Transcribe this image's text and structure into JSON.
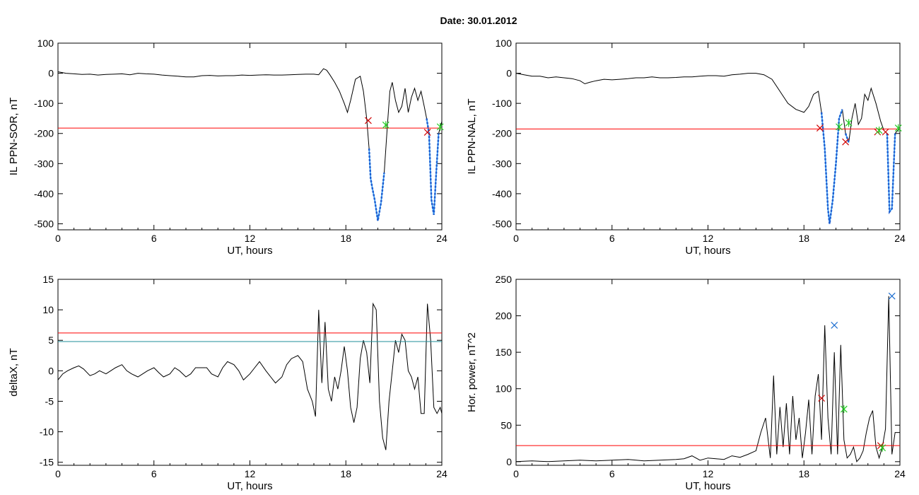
{
  "title": "Date:  30.01.2012",
  "colors": {
    "trace": "#000000",
    "threshold_red": "#ff0000",
    "threshold_teal": "#1f8f9a",
    "highlight_blue": "#1f5fd0",
    "highlight_light": "#2ea0ff",
    "marker_red": "#d00000",
    "marker_green": "#22cc22",
    "marker_blue": "#1f6fd0"
  },
  "chart_data": [
    {
      "id": "sor",
      "type": "line",
      "ylabel": "IL PPN-SOR, nT",
      "xlabel": "UT, hours",
      "xlim": [
        0,
        24
      ],
      "ylim": [
        -520,
        100
      ],
      "xticks": [
        "0",
        "6",
        "12",
        "18",
        "24"
      ],
      "yticks": [
        "100",
        "0",
        "-100",
        "-200",
        "-300",
        "-400",
        "-500"
      ],
      "grid": false,
      "series": [
        {
          "x": [
            0,
            0.5,
            1,
            1.5,
            2,
            2.5,
            3,
            3.5,
            4,
            4.5,
            5,
            5.5,
            6,
            6.5,
            7,
            7.5,
            8,
            8.5,
            9,
            9.5,
            10,
            10.5,
            11,
            11.5,
            12,
            12.5,
            13,
            13.5,
            14,
            14.5,
            15,
            15.5,
            16,
            16.3,
            16.6,
            16.8,
            17,
            17.3,
            17.6,
            17.9,
            18.1,
            18.3,
            18.6,
            18.9,
            19.1,
            19.3,
            19.45,
            19.55,
            19.65,
            19.8,
            20,
            20.2,
            20.4,
            20.6,
            20.75,
            20.9,
            21.1,
            21.3,
            21.5,
            21.7,
            21.9,
            22.1,
            22.3,
            22.5,
            22.7,
            22.9,
            23.05,
            23.2,
            23.35,
            23.5,
            23.65,
            23.8,
            24
          ],
          "y": [
            5,
            0,
            -2,
            -4,
            -3,
            -6,
            -4,
            -3,
            -2,
            -5,
            0,
            -2,
            -3,
            -6,
            -8,
            -10,
            -12,
            -12,
            -8,
            -7,
            -9,
            -8,
            -8,
            -6,
            -7,
            -6,
            -5,
            -6,
            -6,
            -5,
            -4,
            -3,
            -3,
            -5,
            15,
            10,
            -5,
            -30,
            -60,
            -100,
            -130,
            -90,
            -20,
            -10,
            -60,
            -150,
            -250,
            -350,
            -380,
            -420,
            -490,
            -430,
            -330,
            -170,
            -60,
            -30,
            -90,
            -130,
            -110,
            -50,
            -130,
            -80,
            -50,
            -90,
            -60,
            -110,
            -150,
            -200,
            -420,
            -470,
            -330,
            -200,
            -160
          ],
          "highlights": [
            [
              19.4,
              20.5
            ],
            [
              23.0,
              23.8
            ]
          ]
        }
      ],
      "hlines": [
        {
          "y": -182,
          "color": "red"
        }
      ],
      "markers": [
        {
          "x": 19.4,
          "y": -157,
          "color": "red"
        },
        {
          "x": 20.5,
          "y": -172,
          "color": "green"
        },
        {
          "x": 23.1,
          "y": -196,
          "color": "red"
        },
        {
          "x": 23.9,
          "y": -178,
          "color": "green"
        }
      ]
    },
    {
      "id": "nal",
      "type": "line",
      "ylabel": "IL PPN-NAL, nT",
      "xlabel": "UT, hours",
      "xlim": [
        0,
        24
      ],
      "ylim": [
        -520,
        100
      ],
      "xticks": [
        "0",
        "6",
        "12",
        "18",
        "24"
      ],
      "yticks": [
        "100",
        "0",
        "-100",
        "-200",
        "-300",
        "-400",
        "-500"
      ],
      "grid": false,
      "series": [
        {
          "x": [
            0,
            0.5,
            1,
            1.5,
            2,
            2.5,
            3,
            3.5,
            4,
            4.3,
            4.6,
            5,
            5.5,
            6,
            6.5,
            7,
            7.5,
            8,
            8.5,
            9,
            9.5,
            10,
            10.5,
            11,
            11.5,
            12,
            12.5,
            13,
            13.5,
            14,
            14.5,
            15,
            15.5,
            16,
            16.5,
            17,
            17.5,
            18,
            18.3,
            18.6,
            18.9,
            19.1,
            19.3,
            19.5,
            19.6,
            19.8,
            20,
            20.2,
            20.4,
            20.6,
            20.8,
            21,
            21.2,
            21.4,
            21.6,
            21.8,
            22,
            22.2,
            22.5,
            22.8,
            23,
            23.2,
            23.35,
            23.5,
            23.7,
            23.85,
            24
          ],
          "y": [
            0,
            -5,
            -10,
            -10,
            -15,
            -12,
            -15,
            -18,
            -25,
            -35,
            -30,
            -25,
            -20,
            -22,
            -20,
            -18,
            -15,
            -15,
            -12,
            -15,
            -15,
            -14,
            -12,
            -12,
            -10,
            -8,
            -8,
            -10,
            -5,
            -3,
            0,
            0,
            -5,
            -20,
            -60,
            -100,
            -120,
            -130,
            -110,
            -70,
            -60,
            -130,
            -250,
            -450,
            -500,
            -420,
            -300,
            -150,
            -120,
            -200,
            -230,
            -150,
            -100,
            -170,
            -150,
            -70,
            -90,
            -50,
            -100,
            -160,
            -190,
            -200,
            -460,
            -450,
            -200,
            -190,
            -185
          ],
          "highlights": [
            [
              19.0,
              20.4
            ],
            [
              20.5,
              20.9
            ],
            [
              23.1,
              23.8
            ]
          ]
        }
      ],
      "hlines": [
        {
          "y": -185,
          "color": "red"
        }
      ],
      "markers": [
        {
          "x": 19.0,
          "y": -182,
          "color": "red"
        },
        {
          "x": 20.2,
          "y": -178,
          "color": "green"
        },
        {
          "x": 20.6,
          "y": -228,
          "color": "red"
        },
        {
          "x": 20.8,
          "y": -165,
          "color": "green"
        },
        {
          "x": 22.6,
          "y": -195,
          "color": "red"
        },
        {
          "x": 22.7,
          "y": -190,
          "color": "green"
        },
        {
          "x": 23.1,
          "y": -195,
          "color": "red"
        },
        {
          "x": 23.9,
          "y": -182,
          "color": "green"
        }
      ]
    },
    {
      "id": "deltax",
      "type": "line",
      "ylabel": "deltaX, nT",
      "xlabel": "UT, hours",
      "xlim": [
        0,
        24
      ],
      "ylim": [
        -15.5,
        15
      ],
      "xticks": [
        "0",
        "6",
        "12",
        "18",
        "24"
      ],
      "yticks": [
        "15",
        "10",
        "5",
        "0",
        "-5",
        "-10",
        "-15"
      ],
      "grid": false,
      "series": [
        {
          "x": [
            0,
            0.3,
            0.6,
            1,
            1.3,
            1.6,
            2,
            2.3,
            2.6,
            3,
            3.3,
            3.6,
            4,
            4.3,
            4.6,
            5,
            5.3,
            5.6,
            6,
            6.3,
            6.6,
            7,
            7.3,
            7.6,
            8,
            8.3,
            8.6,
            9,
            9.3,
            9.6,
            10,
            10.3,
            10.6,
            11,
            11.3,
            11.6,
            12,
            12.3,
            12.6,
            13,
            13.3,
            13.6,
            14,
            14.3,
            14.6,
            15,
            15.3,
            15.6,
            15.9,
            16.1,
            16.3,
            16.5,
            16.7,
            16.9,
            17.1,
            17.3,
            17.5,
            17.7,
            17.9,
            18.1,
            18.3,
            18.5,
            18.7,
            18.9,
            19.1,
            19.3,
            19.5,
            19.7,
            19.9,
            20.1,
            20.3,
            20.5,
            20.7,
            20.9,
            21.1,
            21.3,
            21.5,
            21.7,
            21.9,
            22.1,
            22.3,
            22.5,
            22.7,
            22.9,
            23.1,
            23.3,
            23.5,
            23.7,
            23.9,
            24
          ],
          "y": [
            -1.5,
            -0.5,
            0,
            0.5,
            0.8,
            0.3,
            -0.8,
            -0.5,
            0,
            -0.5,
            0,
            0.5,
            1,
            0,
            -0.5,
            -1,
            -0.5,
            0,
            0.5,
            -0.3,
            -1,
            -0.5,
            0.5,
            0,
            -1,
            -0.5,
            0.5,
            0.5,
            0.5,
            -0.5,
            -1,
            0.5,
            1.5,
            1,
            0,
            -1.5,
            -0.5,
            0.5,
            1.5,
            0,
            -1,
            -2,
            -1,
            1,
            2,
            2.5,
            1.5,
            -3,
            -5,
            -7.5,
            10,
            -2,
            8,
            -3,
            -5,
            -1,
            -3,
            0,
            4,
            0,
            -6,
            -8.5,
            -6,
            2,
            5,
            3,
            -2,
            11,
            10,
            -5,
            -11,
            -13,
            -5,
            0,
            5,
            3,
            6,
            5,
            0,
            -1,
            -3,
            -1,
            -7,
            -7,
            11,
            5,
            -6,
            -7,
            -6,
            -7
          ],
          "highlights": []
        }
      ],
      "hlines": [
        {
          "y": 6.2,
          "color": "red"
        },
        {
          "y": 4.8,
          "color": "teal"
        }
      ],
      "markers": []
    },
    {
      "id": "power",
      "type": "line",
      "ylabel": "Hor. power, nT^2",
      "xlabel": "UT, hours",
      "xlim": [
        0,
        24
      ],
      "ylim": [
        -5,
        250
      ],
      "xticks": [
        "0",
        "6",
        "12",
        "18",
        "24"
      ],
      "yticks": [
        "250",
        "200",
        "150",
        "100",
        "50",
        "0"
      ],
      "grid": false,
      "series": [
        {
          "x": [
            0,
            1,
            2,
            3,
            4,
            5,
            6,
            7,
            8,
            9,
            10,
            10.5,
            11,
            11.5,
            12,
            12.5,
            13,
            13.5,
            14,
            14.5,
            15,
            15.3,
            15.6,
            15.9,
            16.1,
            16.3,
            16.5,
            16.7,
            16.9,
            17.1,
            17.3,
            17.5,
            17.7,
            17.9,
            18.1,
            18.3,
            18.5,
            18.7,
            18.9,
            19.1,
            19.3,
            19.5,
            19.7,
            19.9,
            20.1,
            20.3,
            20.5,
            20.7,
            20.9,
            21.1,
            21.3,
            21.5,
            21.7,
            21.9,
            22.1,
            22.3,
            22.5,
            22.7,
            22.9,
            23.1,
            23.3,
            23.5,
            23.7,
            24
          ],
          "y": [
            0,
            1,
            0,
            1,
            2,
            1,
            2,
            3,
            1,
            2,
            3,
            4,
            8,
            2,
            5,
            4,
            3,
            8,
            6,
            10,
            15,
            40,
            60,
            5,
            118,
            10,
            75,
            20,
            80,
            10,
            90,
            30,
            60,
            5,
            40,
            85,
            10,
            90,
            120,
            30,
            187,
            60,
            10,
            150,
            10,
            160,
            30,
            5,
            10,
            20,
            0,
            5,
            15,
            40,
            60,
            70,
            20,
            5,
            20,
            45,
            227,
            10,
            40,
            40
          ],
          "highlights": []
        }
      ],
      "hlines": [
        {
          "y": 22,
          "color": "red"
        }
      ],
      "markers": [
        {
          "x": 19.1,
          "y": 87,
          "color": "red"
        },
        {
          "x": 19.9,
          "y": 187,
          "color": "blue"
        },
        {
          "x": 20.5,
          "y": 72,
          "color": "green"
        },
        {
          "x": 22.8,
          "y": 22,
          "color": "red"
        },
        {
          "x": 22.9,
          "y": 19,
          "color": "green"
        },
        {
          "x": 23.5,
          "y": 227,
          "color": "blue"
        }
      ]
    }
  ]
}
